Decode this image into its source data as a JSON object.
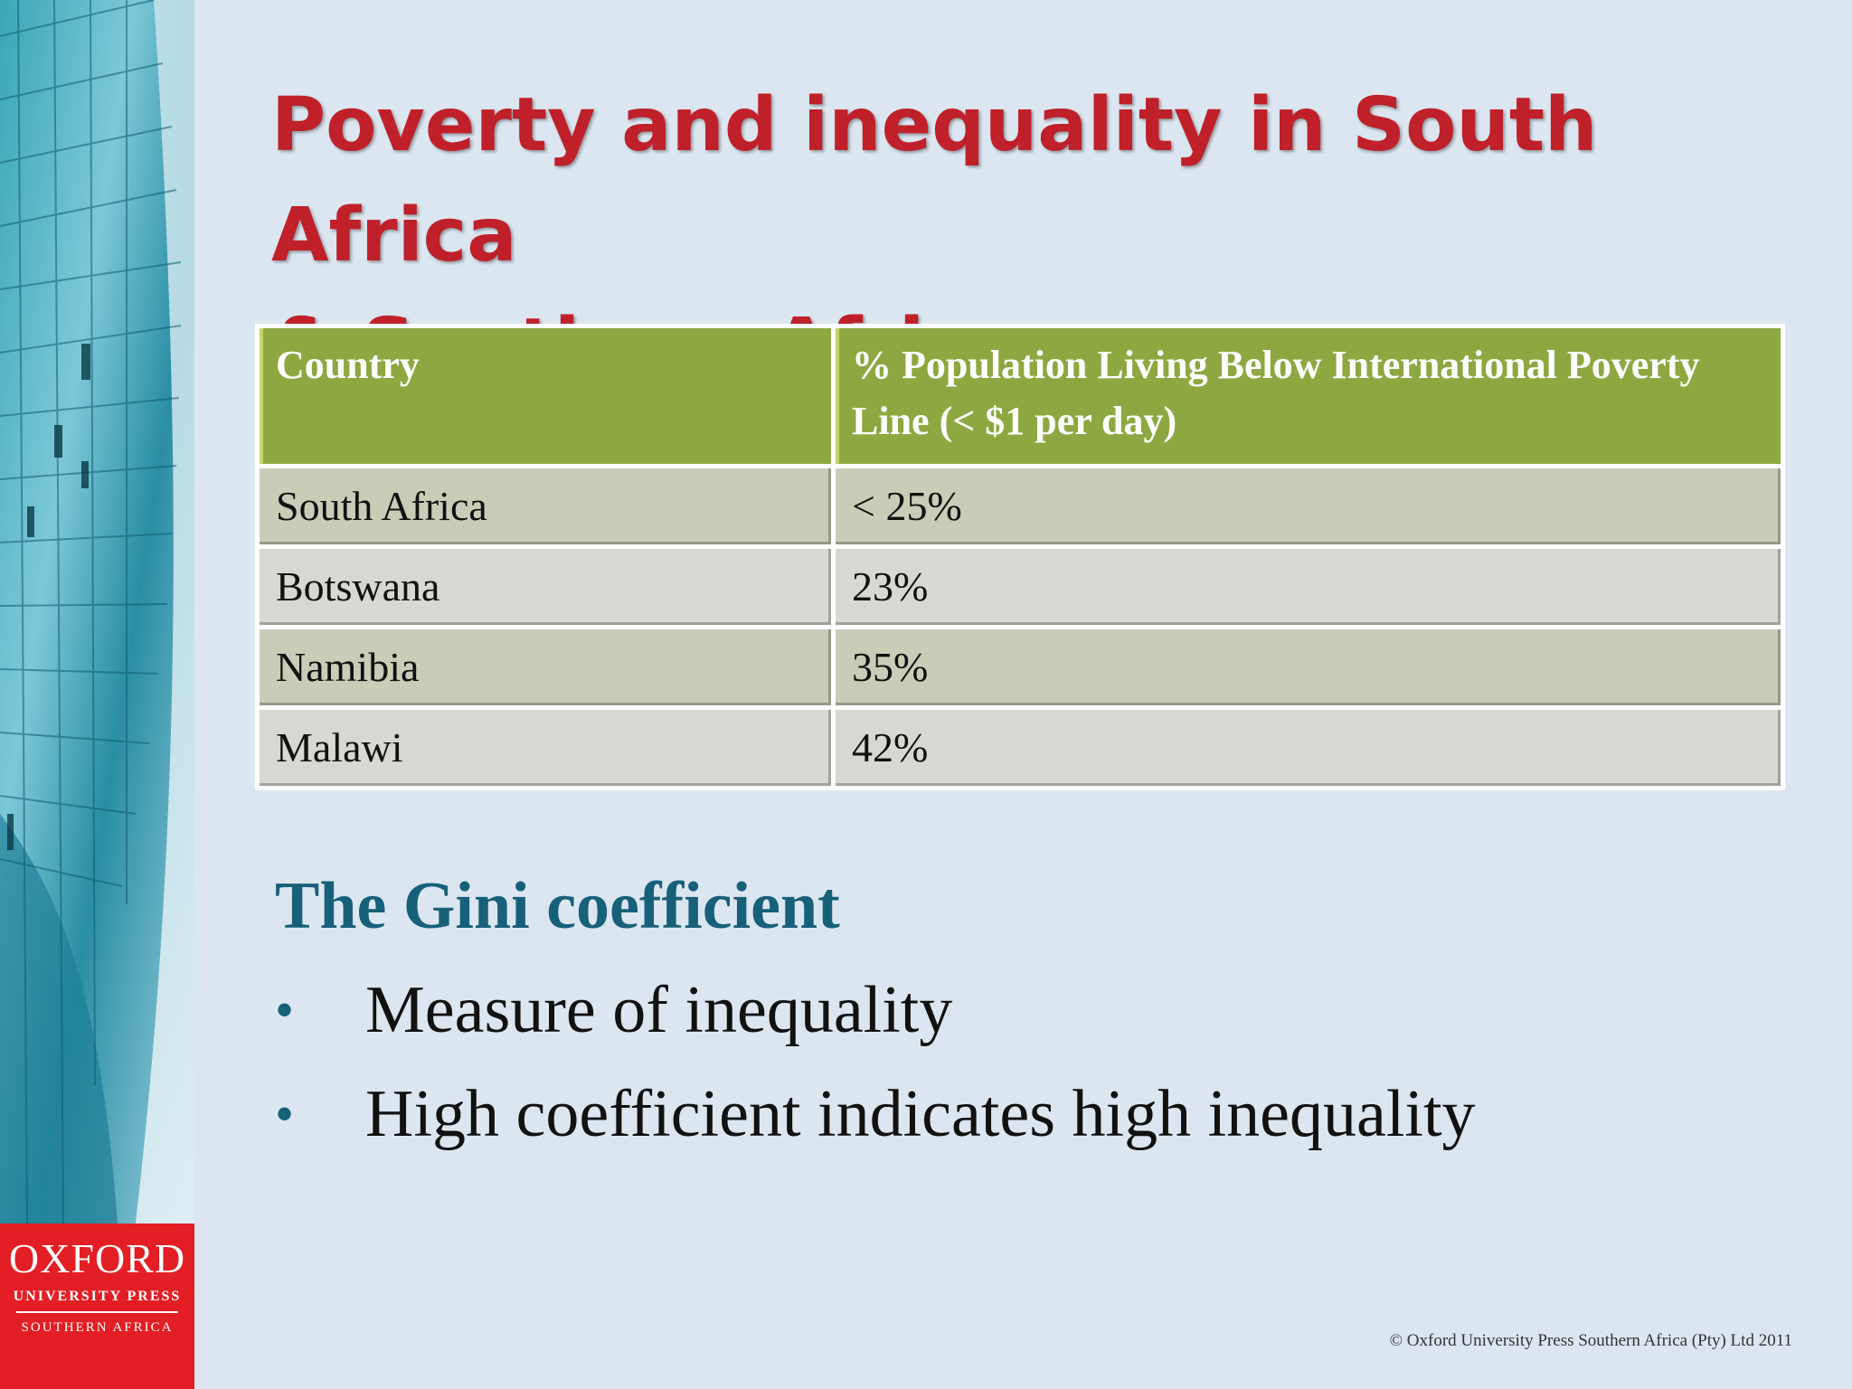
{
  "slide": {
    "title_line1": "Poverty and inequality in South Africa",
    "title_line2": "& Southern Africa",
    "colors": {
      "title": "#c0202a",
      "header_fill": "#8da840",
      "subheading": "#17607a",
      "logo_fill": "#e31e24",
      "background": "#dce6f0"
    }
  },
  "table": {
    "headers": [
      "Country",
      "% Population Living Below International Poverty Line (< $1 per day)"
    ],
    "rows": [
      [
        "South Africa",
        "< 25%"
      ],
      [
        "Botswana",
        "23%"
      ],
      [
        "Namibia",
        "35%"
      ],
      [
        "Malawi",
        "42%"
      ]
    ]
  },
  "gini": {
    "heading": "The Gini coefficient",
    "bullets": [
      "Measure of inequality",
      "High coefficient indicates high inequality"
    ],
    "bullet_symbol": "•"
  },
  "logo": {
    "name": "OXFORD",
    "line2": "UNIVERSITY PRESS",
    "line3": "SOUTHERN AFRICA"
  },
  "footer": {
    "copyright": "© Oxford University Press Southern Africa (Pty) Ltd 2011"
  }
}
